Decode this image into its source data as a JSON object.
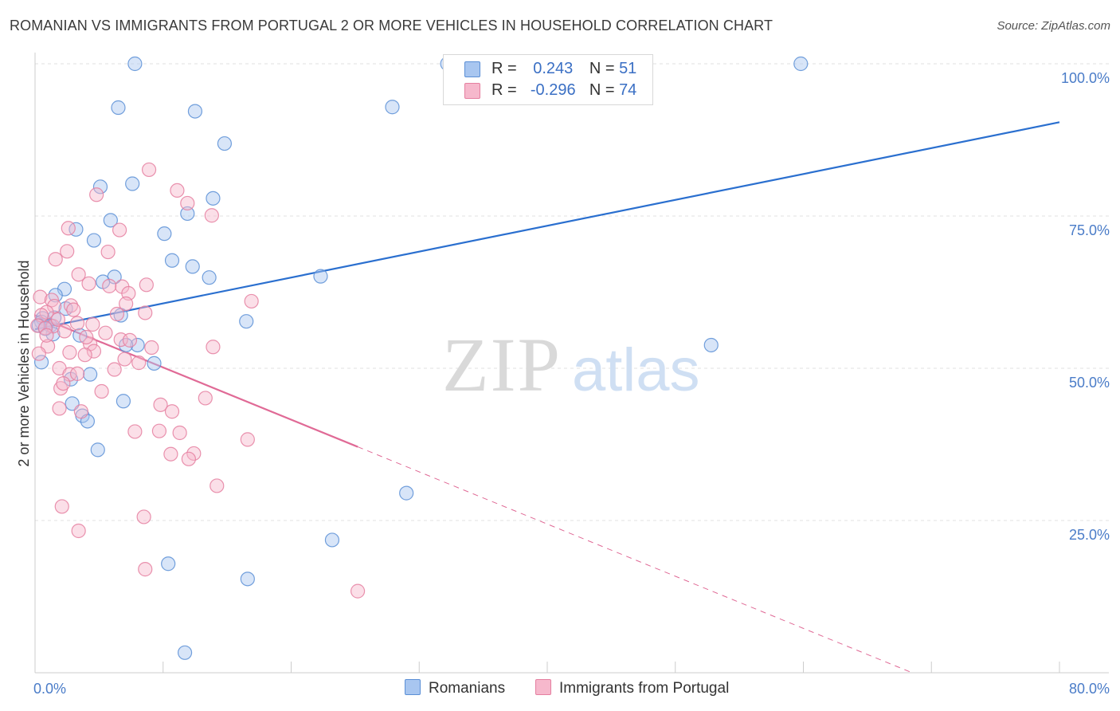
{
  "title": "ROMANIAN VS IMMIGRANTS FROM PORTUGAL 2 OR MORE VEHICLES IN HOUSEHOLD CORRELATION CHART",
  "source": "Source: ZipAtlas.com",
  "watermark": {
    "zip": "ZIP",
    "atlas": "atlas"
  },
  "colors": {
    "blue_fill": "#a8c6f0",
    "blue_stroke": "#5b8fd6",
    "blue_line": "#2a6fcf",
    "pink_fill": "#f6b8cc",
    "pink_stroke": "#e57fa0",
    "pink_line": "#e06a96",
    "tick_text": "#4a7cc8",
    "grid": "#e2e2e2"
  },
  "legend": {
    "rows": [
      {
        "r_label": "R =",
        "r_value": "0.243",
        "n_label": "N =",
        "n_value": "51"
      },
      {
        "r_label": "R =",
        "r_value": "-0.296",
        "n_label": "N =",
        "n_value": "74"
      }
    ]
  },
  "bottom_legend": {
    "series1": "Romanians",
    "series2": "Immigrants from Portugal"
  },
  "chart_data": {
    "type": "scatter",
    "xlabel": "",
    "ylabel": "2 or more Vehicles in Household",
    "xlim": [
      0,
      80
    ],
    "ylim": [
      0,
      103
    ],
    "x_tick_labels": [
      "0.0%",
      "80.0%"
    ],
    "y_ticks": [
      25,
      50,
      75,
      100
    ],
    "y_tick_labels": [
      "25.0%",
      "50.0%",
      "75.0%",
      "100.0%"
    ],
    "series": [
      {
        "name": "Romanians",
        "points": [
          [
            7.8,
            100
          ],
          [
            32.2,
            100
          ],
          [
            59.8,
            100
          ],
          [
            6.5,
            92.8
          ],
          [
            12.5,
            92.2
          ],
          [
            27.9,
            92.9
          ],
          [
            14.8,
            86.9
          ],
          [
            7.6,
            80.3
          ],
          [
            5.1,
            79.8
          ],
          [
            13.9,
            77.9
          ],
          [
            11.9,
            75.4
          ],
          [
            5.9,
            74.3
          ],
          [
            3.2,
            72.8
          ],
          [
            10.1,
            72.1
          ],
          [
            4.6,
            71.0
          ],
          [
            10.7,
            67.7
          ],
          [
            12.3,
            66.7
          ],
          [
            6.2,
            65.0
          ],
          [
            13.6,
            64.9
          ],
          [
            22.3,
            65.1
          ],
          [
            5.3,
            64.2
          ],
          [
            2.3,
            63.0
          ],
          [
            1.6,
            62.0
          ],
          [
            2.4,
            59.8
          ],
          [
            0.6,
            58.2
          ],
          [
            6.7,
            58.7
          ],
          [
            1.5,
            58.3
          ],
          [
            0.5,
            57.6
          ],
          [
            1.2,
            57.0
          ],
          [
            0.3,
            57.0
          ],
          [
            16.5,
            57.7
          ],
          [
            1.4,
            55.6
          ],
          [
            3.5,
            55.4
          ],
          [
            8.0,
            53.8
          ],
          [
            7.1,
            53.8
          ],
          [
            52.8,
            53.8
          ],
          [
            9.3,
            50.8
          ],
          [
            0.5,
            51.0
          ],
          [
            4.3,
            49.0
          ],
          [
            2.8,
            48.2
          ],
          [
            6.9,
            44.6
          ],
          [
            2.9,
            44.2
          ],
          [
            3.7,
            42.2
          ],
          [
            4.1,
            41.3
          ],
          [
            4.9,
            36.6
          ],
          [
            29.0,
            29.5
          ],
          [
            23.2,
            21.8
          ],
          [
            10.4,
            17.9
          ],
          [
            16.6,
            15.4
          ],
          [
            11.7,
            3.3
          ],
          [
            0.8,
            56.5
          ]
        ]
      },
      {
        "name": "Immigrants from Portugal",
        "points": [
          [
            8.9,
            82.6
          ],
          [
            11.1,
            79.2
          ],
          [
            4.8,
            78.5
          ],
          [
            11.9,
            77.1
          ],
          [
            13.8,
            75.1
          ],
          [
            2.6,
            73.0
          ],
          [
            6.6,
            72.7
          ],
          [
            2.5,
            69.2
          ],
          [
            5.7,
            69.1
          ],
          [
            1.6,
            67.9
          ],
          [
            3.4,
            65.4
          ],
          [
            4.2,
            63.9
          ],
          [
            5.8,
            63.5
          ],
          [
            6.8,
            63.4
          ],
          [
            8.7,
            63.7
          ],
          [
            7.3,
            62.3
          ],
          [
            0.4,
            61.7
          ],
          [
            1.3,
            61.2
          ],
          [
            16.9,
            61.0
          ],
          [
            1.5,
            60.2
          ],
          [
            2.8,
            60.3
          ],
          [
            7.1,
            60.6
          ],
          [
            3.0,
            59.6
          ],
          [
            0.9,
            59.2
          ],
          [
            0.5,
            58.7
          ],
          [
            8.6,
            59.1
          ],
          [
            6.4,
            58.9
          ],
          [
            4.5,
            57.2
          ],
          [
            0.2,
            57.0
          ],
          [
            1.4,
            56.9
          ],
          [
            3.3,
            57.4
          ],
          [
            6.7,
            54.7
          ],
          [
            4.3,
            54.0
          ],
          [
            1.0,
            53.6
          ],
          [
            9.1,
            53.4
          ],
          [
            13.9,
            53.5
          ],
          [
            4.6,
            52.8
          ],
          [
            2.7,
            52.6
          ],
          [
            0.3,
            52.4
          ],
          [
            7.0,
            51.5
          ],
          [
            8.1,
            50.9
          ],
          [
            1.9,
            50.0
          ],
          [
            6.2,
            49.8
          ],
          [
            2.7,
            49.0
          ],
          [
            3.3,
            49.1
          ],
          [
            2.0,
            46.7
          ],
          [
            2.2,
            47.5
          ],
          [
            5.2,
            46.2
          ],
          [
            13.3,
            45.1
          ],
          [
            9.8,
            44.0
          ],
          [
            1.9,
            43.4
          ],
          [
            3.6,
            42.9
          ],
          [
            10.7,
            42.9
          ],
          [
            7.8,
            39.6
          ],
          [
            9.7,
            39.7
          ],
          [
            11.3,
            39.4
          ],
          [
            16.6,
            38.3
          ],
          [
            10.6,
            35.9
          ],
          [
            12.4,
            36.0
          ],
          [
            12.0,
            35.1
          ],
          [
            14.2,
            30.7
          ],
          [
            2.1,
            27.3
          ],
          [
            8.5,
            25.6
          ],
          [
            3.4,
            23.3
          ],
          [
            8.6,
            17.0
          ],
          [
            25.2,
            13.4
          ],
          [
            0.8,
            56.6
          ],
          [
            1.8,
            58.0
          ],
          [
            2.3,
            56.1
          ],
          [
            4.0,
            55.1
          ],
          [
            5.5,
            55.8
          ],
          [
            3.9,
            52.2
          ],
          [
            0.9,
            55.4
          ],
          [
            7.4,
            54.6
          ]
        ]
      }
    ],
    "trend_lines": [
      {
        "series": "Romanians",
        "x": [
          0,
          80
        ],
        "y": [
          56.4,
          90.4
        ],
        "style": "solid"
      },
      {
        "series": "Immigrants from Portugal",
        "x": [
          0,
          25.2
        ],
        "y": [
          58.7,
          37.1
        ],
        "style": "solid"
      },
      {
        "series": "Immigrants from Portugal",
        "x": [
          25.2,
          68.5
        ],
        "y": [
          37.1,
          0
        ],
        "style": "dashed"
      }
    ]
  }
}
